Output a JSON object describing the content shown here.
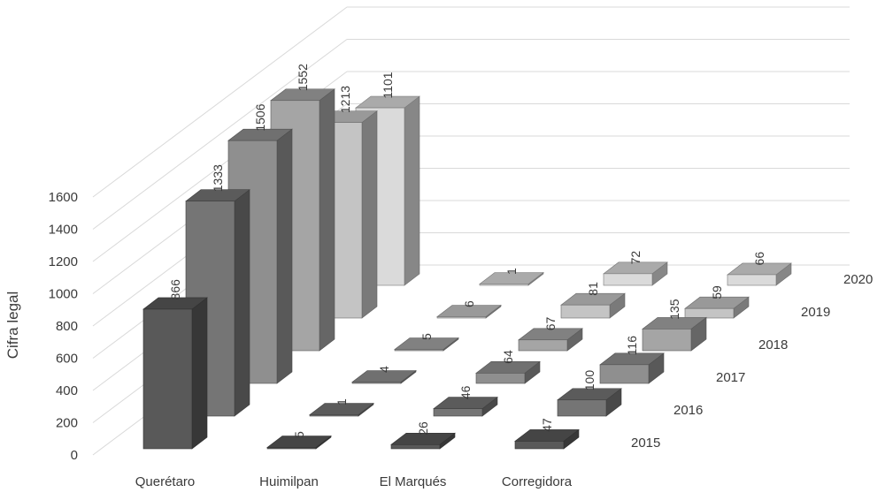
{
  "chart_data": {
    "type": "bar",
    "subtype": "3d-column",
    "title": "",
    "ylabel": "Cifra legal",
    "xlabel": "",
    "ylim": [
      0,
      1600
    ],
    "yticks": [
      "0",
      "200",
      "400",
      "600",
      "800",
      "1000",
      "1200",
      "1400",
      "1600"
    ],
    "categories": [
      "Querétaro",
      "Huimilpan",
      "El Marqués",
      "Corregidora"
    ],
    "series": [
      {
        "name": "2015",
        "color": "#595959",
        "values": [
          866,
          5,
          26,
          47
        ]
      },
      {
        "name": "2016",
        "color": "#757575",
        "values": [
          1333,
          1,
          46,
          100
        ]
      },
      {
        "name": "2017",
        "color": "#8f8f8f",
        "values": [
          1506,
          4,
          64,
          116
        ]
      },
      {
        "name": "2018",
        "color": "#a5a5a5",
        "values": [
          1552,
          5,
          67,
          135
        ]
      },
      {
        "name": "2019",
        "color": "#c4c4c4",
        "values": [
          1213,
          6,
          81,
          59
        ]
      },
      {
        "name": "2020",
        "color": "#dadada",
        "values": [
          1101,
          1,
          72,
          66
        ]
      }
    ]
  }
}
